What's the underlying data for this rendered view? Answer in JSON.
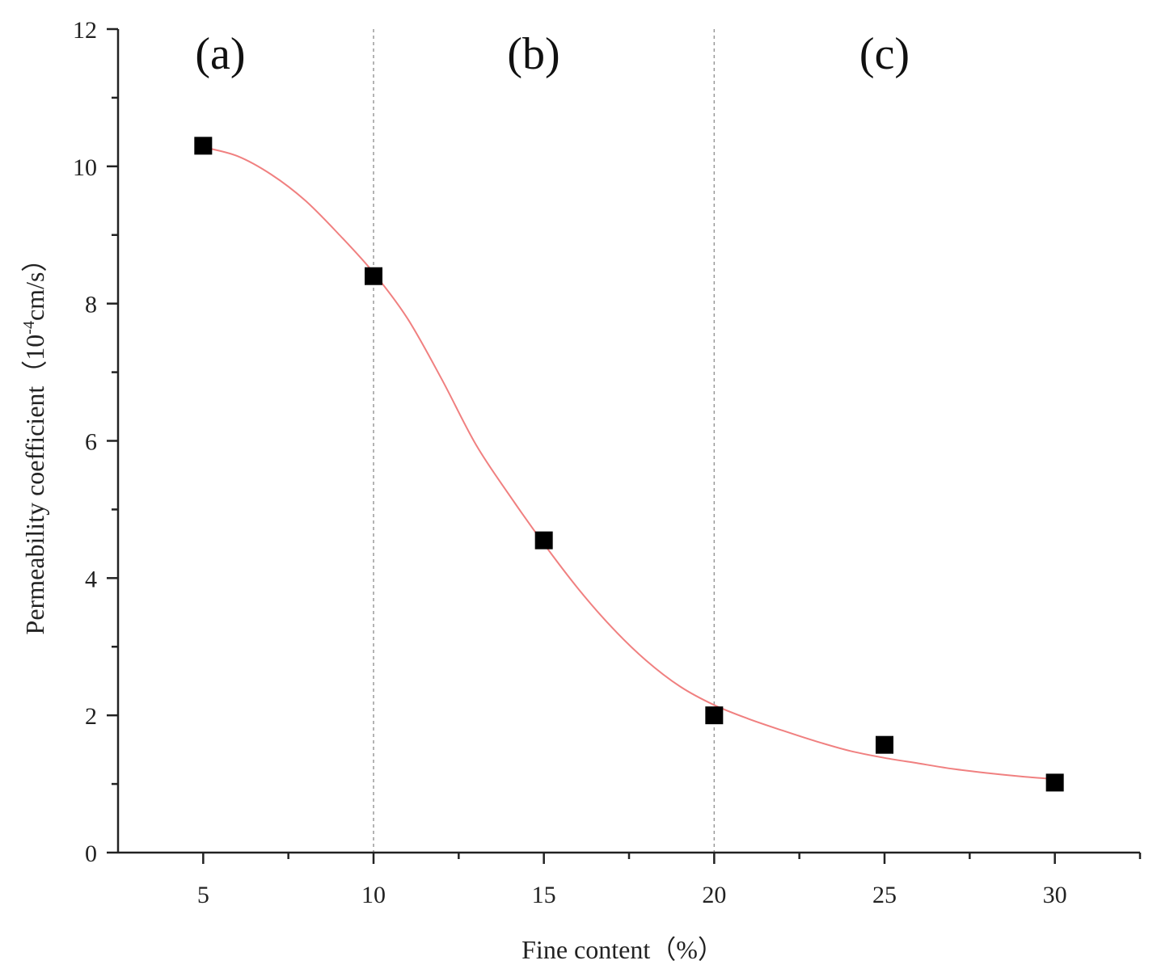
{
  "chart_data": {
    "type": "scatter",
    "xlabel": "Fine content（%）",
    "ylabel_main": "Permeability coefficient（10",
    "ylabel_sup": "-4",
    "ylabel_tail": "cm/s）",
    "xlim": [
      2.5,
      32.5
    ],
    "ylim": [
      0,
      12
    ],
    "x_ticks": [
      5,
      10,
      15,
      20,
      25,
      30
    ],
    "y_ticks": [
      0,
      2,
      4,
      6,
      8,
      10,
      12
    ],
    "x_minor_step": 2.5,
    "y_minor_step": 1,
    "grid": false,
    "region_dividers_x": [
      10,
      20
    ],
    "region_labels": [
      {
        "text": "(a)",
        "x": 5.5
      },
      {
        "text": "(b)",
        "x": 14.7
      },
      {
        "text": "(c)",
        "x": 25
      }
    ],
    "series": [
      {
        "x": [
          5,
          10,
          15,
          20,
          25,
          30
        ],
        "y": [
          10.3,
          8.4,
          4.55,
          2.0,
          1.57,
          1.02
        ],
        "marker": "square",
        "color": "#000000"
      }
    ],
    "fit_curve": {
      "color": "#f08080",
      "x": [
        5,
        6,
        7,
        8,
        9,
        10,
        11,
        12,
        13,
        14,
        15,
        16,
        17,
        18,
        19,
        20,
        21,
        22,
        23,
        24,
        25,
        26,
        27,
        28,
        29,
        30
      ],
      "y": [
        10.28,
        10.15,
        9.88,
        9.5,
        9.0,
        8.45,
        7.78,
        6.9,
        5.95,
        5.2,
        4.5,
        3.85,
        3.28,
        2.8,
        2.42,
        2.15,
        1.95,
        1.78,
        1.62,
        1.48,
        1.38,
        1.3,
        1.22,
        1.16,
        1.11,
        1.07
      ]
    }
  }
}
